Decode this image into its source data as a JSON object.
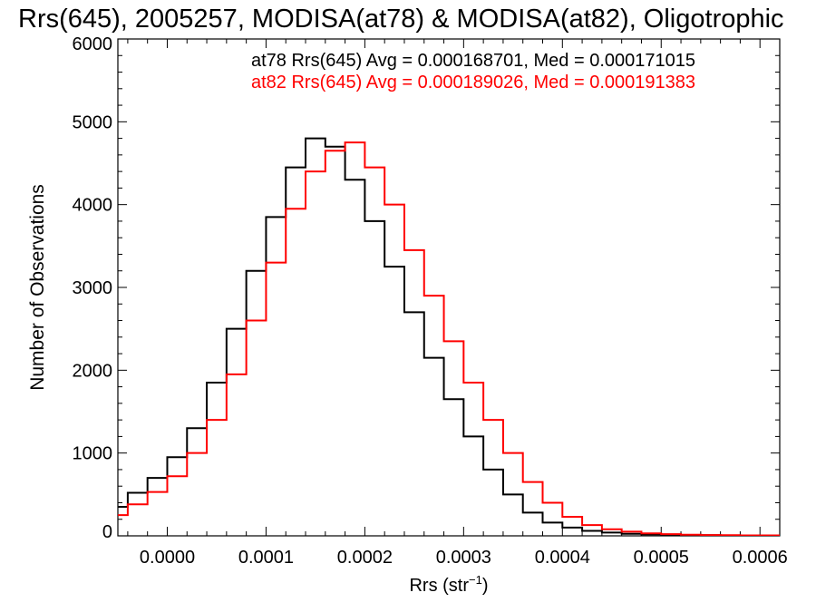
{
  "chart_data": {
    "type": "line",
    "title": "Rrs(645), 2005257, MODISA(at78) & MODISA(at82), Oligotrophic",
    "xlabel_main": "Rrs (str",
    "xlabel_sup": "−1",
    "xlabel_end": ")",
    "ylabel": "Number of Observations",
    "xlim": [
      -5e-05,
      0.00062
    ],
    "ylim": [
      0,
      6000
    ],
    "x_ticks": [
      0.0,
      0.0001,
      0.0002,
      0.0003,
      0.0004,
      0.0005,
      0.0006
    ],
    "x_tick_labels": [
      "0.0000",
      "0.0001",
      "0.0002",
      "0.0003",
      "0.0004",
      "0.0005",
      "0.0006"
    ],
    "y_ticks": [
      0,
      1000,
      2000,
      3000,
      4000,
      5000,
      6000
    ],
    "y_tick_labels": [
      "0",
      "1000",
      "2000",
      "3000",
      "4000",
      "5000",
      "6000"
    ],
    "series": [
      {
        "name": "at78",
        "color": "#000000",
        "label": "at78 Rrs(645) Avg = 0.000168701, Med = 0.000171015",
        "x": [
          -5e-05,
          -3e-05,
          -1e-05,
          1e-05,
          3e-05,
          5e-05,
          7e-05,
          9e-05,
          0.00011,
          0.00013,
          0.00015,
          0.00017,
          0.00019,
          0.00021,
          0.00023,
          0.00025,
          0.00027,
          0.00029,
          0.00031,
          0.00033,
          0.00035,
          0.00037,
          0.00039,
          0.00041,
          0.00043,
          0.00045,
          0.00047,
          0.00049,
          0.00051,
          0.00053,
          0.00055,
          0.00057,
          0.00059,
          0.00061
        ],
        "values": [
          350,
          520,
          700,
          950,
          1300,
          1850,
          2500,
          3200,
          3850,
          4450,
          4800,
          4700,
          4300,
          3800,
          3250,
          2700,
          2150,
          1650,
          1200,
          800,
          500,
          280,
          160,
          100,
          60,
          40,
          25,
          18,
          12,
          10,
          8,
          6,
          5,
          4
        ]
      },
      {
        "name": "at82",
        "color": "#ff0000",
        "label": "at82 Rrs(645) Avg = 0.000189026, Med = 0.000191383",
        "x": [
          -5e-05,
          -3e-05,
          -1e-05,
          1e-05,
          3e-05,
          5e-05,
          7e-05,
          9e-05,
          0.00011,
          0.00013,
          0.00015,
          0.00017,
          0.00019,
          0.00021,
          0.00023,
          0.00025,
          0.00027,
          0.00029,
          0.00031,
          0.00033,
          0.00035,
          0.00037,
          0.00039,
          0.00041,
          0.00043,
          0.00045,
          0.00047,
          0.00049,
          0.00051,
          0.00053,
          0.00055,
          0.00057,
          0.00059,
          0.00061
        ],
        "values": [
          250,
          380,
          530,
          720,
          1000,
          1400,
          1950,
          2600,
          3300,
          3950,
          4400,
          4650,
          4750,
          4450,
          4000,
          3450,
          2900,
          2350,
          1850,
          1400,
          1000,
          650,
          400,
          230,
          130,
          80,
          50,
          30,
          20,
          14,
          10,
          8,
          6,
          5
        ]
      }
    ],
    "grid": false,
    "legend_position": "top-right"
  }
}
